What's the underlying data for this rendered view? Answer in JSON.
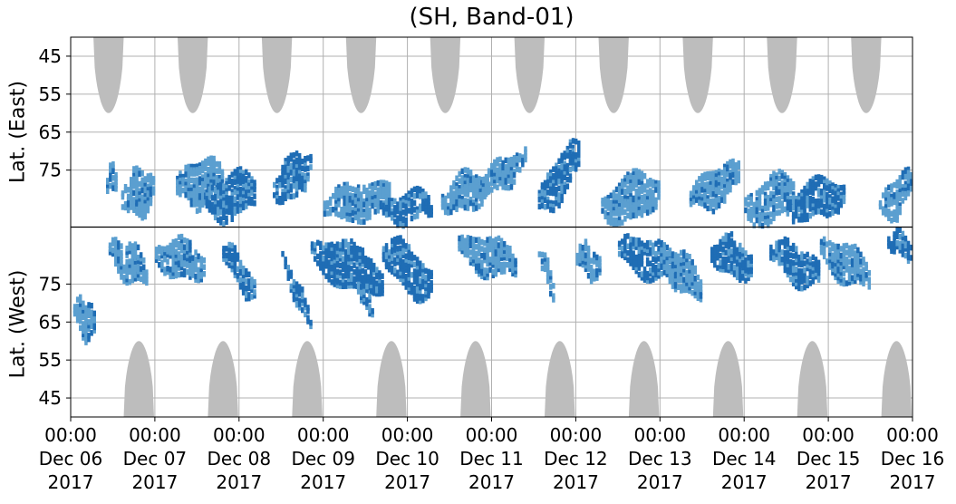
{
  "chart_data": {
    "type": "heatmap",
    "title": "(SH, Band-01)",
    "ylabel_top": "Lat. (East)",
    "ylabel_bottom": "Lat. (West)",
    "y_ticks_top": [
      "45",
      "55",
      "65",
      "75"
    ],
    "y_ticks_bottom": [
      "75",
      "65",
      "55",
      "45"
    ],
    "x_ticks": [
      {
        "time": "00:00",
        "date": "Dec 06",
        "year": "2017"
      },
      {
        "time": "00:00",
        "date": "Dec 07",
        "year": "2017"
      },
      {
        "time": "00:00",
        "date": "Dec 08",
        "year": "2017"
      },
      {
        "time": "00:00",
        "date": "Dec 09",
        "year": "2017"
      },
      {
        "time": "00:00",
        "date": "Dec 10",
        "year": "2017"
      },
      {
        "time": "00:00",
        "date": "Dec 11",
        "year": "2017"
      },
      {
        "time": "00:00",
        "date": "Dec 12",
        "year": "2017"
      },
      {
        "time": "00:00",
        "date": "Dec 13",
        "year": "2017"
      },
      {
        "time": "00:00",
        "date": "Dec 14",
        "year": "2017"
      },
      {
        "time": "00:00",
        "date": "Dec 15",
        "year": "2017"
      },
      {
        "time": "00:00",
        "date": "Dec 16",
        "year": "2017"
      }
    ],
    "x_range_days": [
      "2017-12-06",
      "2017-12-16"
    ],
    "lat_range": [
      40,
      90
    ],
    "grid": true,
    "colors": {
      "no_coverage": "#bdbdbd",
      "light": "#5b9fd0",
      "dark": "#1f6db5",
      "grid": "#b0b0b0",
      "midline": "#000000"
    },
    "coverage_gaps": {
      "east_day_start": [
        0.27,
        1.27,
        2.27,
        3.27,
        4.27,
        5.27,
        6.27,
        7.27,
        8.27,
        9.27
      ],
      "west_day_start": [
        0.63,
        1.63,
        2.63,
        3.63,
        4.63,
        5.63,
        6.63,
        7.63,
        8.63,
        9.63
      ],
      "width_days": 0.36,
      "min_lat": 60
    },
    "blobs": [
      {
        "hemi": "W",
        "t0": 0.03,
        "t1": 0.28,
        "lat0": 68,
        "lat1": 64,
        "intensity": 1,
        "amp": 5
      },
      {
        "hemi": "W",
        "t0": 0.45,
        "t1": 0.9,
        "lat0": 84,
        "lat1": 78,
        "intensity": 1,
        "amp": 5
      },
      {
        "hemi": "E",
        "t0": 0.42,
        "t1": 0.55,
        "lat0": 78,
        "lat1": 76,
        "intensity": 1,
        "amp": 4
      },
      {
        "hemi": "E",
        "t0": 0.6,
        "t1": 1.0,
        "lat0": 82,
        "lat1": 80,
        "intensity": 1,
        "amp": 6
      },
      {
        "hemi": "W",
        "t0": 1.0,
        "t1": 1.6,
        "lat0": 83,
        "lat1": 80,
        "intensity": 1,
        "amp": 5
      },
      {
        "hemi": "E",
        "t0": 1.25,
        "t1": 1.8,
        "lat0": 80,
        "lat1": 77,
        "intensity": 1,
        "amp": 6
      },
      {
        "hemi": "E",
        "t0": 1.6,
        "t1": 2.2,
        "lat0": 84,
        "lat1": 80,
        "intensity": 2,
        "amp": 6
      },
      {
        "hemi": "W",
        "t0": 1.8,
        "t1": 2.2,
        "lat0": 84,
        "lat1": 72,
        "intensity": 2,
        "amp": 4
      },
      {
        "hemi": "E",
        "t0": 2.4,
        "t1": 2.85,
        "lat0": 80,
        "lat1": 74,
        "intensity": 2,
        "amp": 6
      },
      {
        "hemi": "W",
        "t0": 2.5,
        "t1": 2.85,
        "lat0": 82,
        "lat1": 64,
        "intensity": 2,
        "amp": 3
      },
      {
        "hemi": "W",
        "t0": 2.85,
        "t1": 3.7,
        "lat0": 84,
        "lat1": 76,
        "intensity": 2,
        "amp": 6
      },
      {
        "hemi": "E",
        "t0": 3.0,
        "t1": 3.8,
        "lat0": 85,
        "lat1": 82,
        "intensity": 1,
        "amp": 5
      },
      {
        "hemi": "W",
        "t0": 3.4,
        "t1": 3.6,
        "lat0": 75,
        "lat1": 67,
        "intensity": 1,
        "amp": 3
      },
      {
        "hemi": "E",
        "t0": 3.7,
        "t1": 4.3,
        "lat0": 86,
        "lat1": 84,
        "intensity": 2,
        "amp": 4
      },
      {
        "hemi": "W",
        "t0": 3.7,
        "t1": 4.3,
        "lat0": 84,
        "lat1": 74,
        "intensity": 2,
        "amp": 6
      },
      {
        "hemi": "E",
        "t0": 4.4,
        "t1": 4.95,
        "lat0": 83,
        "lat1": 79,
        "intensity": 1,
        "amp": 5
      },
      {
        "hemi": "W",
        "t0": 4.6,
        "t1": 5.3,
        "lat0": 85,
        "lat1": 80,
        "intensity": 1,
        "amp": 5
      },
      {
        "hemi": "E",
        "t0": 4.85,
        "t1": 5.4,
        "lat0": 80,
        "lat1": 72,
        "intensity": 1,
        "amp": 4
      },
      {
        "hemi": "W",
        "t0": 5.55,
        "t1": 5.75,
        "lat0": 84,
        "lat1": 72,
        "intensity": 1,
        "amp": 3
      },
      {
        "hemi": "E",
        "t0": 5.55,
        "t1": 6.05,
        "lat0": 84,
        "lat1": 70,
        "intensity": 2,
        "amp": 6
      },
      {
        "hemi": "W",
        "t0": 6.0,
        "t1": 6.3,
        "lat0": 83,
        "lat1": 79,
        "intensity": 1,
        "amp": 4
      },
      {
        "hemi": "E",
        "t0": 6.3,
        "t1": 7.0,
        "lat0": 85,
        "lat1": 80,
        "intensity": 1,
        "amp": 6
      },
      {
        "hemi": "W",
        "t0": 6.5,
        "t1": 7.2,
        "lat0": 84,
        "lat1": 80,
        "intensity": 2,
        "amp": 5
      },
      {
        "hemi": "W",
        "t0": 7.0,
        "t1": 7.5,
        "lat0": 82,
        "lat1": 74,
        "intensity": 1,
        "amp": 5
      },
      {
        "hemi": "E",
        "t0": 7.35,
        "t1": 7.95,
        "lat0": 83,
        "lat1": 76,
        "intensity": 1,
        "amp": 5
      },
      {
        "hemi": "W",
        "t0": 7.6,
        "t1": 8.1,
        "lat0": 84,
        "lat1": 80,
        "intensity": 2,
        "amp": 5
      },
      {
        "hemi": "E",
        "t0": 8.0,
        "t1": 8.6,
        "lat0": 86,
        "lat1": 80,
        "intensity": 1,
        "amp": 6
      },
      {
        "hemi": "W",
        "t0": 8.3,
        "t1": 8.9,
        "lat0": 84,
        "lat1": 77,
        "intensity": 2,
        "amp": 5
      },
      {
        "hemi": "E",
        "t0": 8.5,
        "t1": 9.2,
        "lat0": 85,
        "lat1": 81,
        "intensity": 2,
        "amp": 5
      },
      {
        "hemi": "W",
        "t0": 8.9,
        "t1": 9.5,
        "lat0": 84,
        "lat1": 77,
        "intensity": 1,
        "amp": 5
      },
      {
        "hemi": "E",
        "t0": 9.6,
        "t1": 10.0,
        "lat0": 86,
        "lat1": 78,
        "intensity": 1,
        "amp": 5
      },
      {
        "hemi": "W",
        "t0": 9.7,
        "t1": 10.0,
        "lat0": 87,
        "lat1": 84,
        "intensity": 2,
        "amp": 3
      }
    ]
  }
}
